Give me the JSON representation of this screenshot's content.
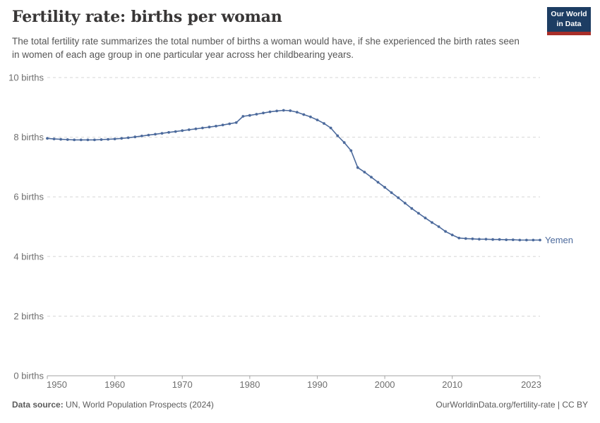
{
  "header": {
    "title": "Fertility rate: births per woman",
    "subtitle": "The total fertility rate summarizes the total number of births a woman would have, if she experienced the birth rates seen in women of each age group in one particular year across her childbearing years.",
    "logo": {
      "line1": "Our World",
      "line2": "in Data",
      "bg_color": "#1d3d63",
      "accent_color": "#a82e29"
    }
  },
  "chart_data": {
    "type": "line",
    "title": "Fertility rate: births per woman",
    "xlabel": "",
    "ylabel": "births per woman",
    "xlim": [
      1950,
      2023
    ],
    "ylim": [
      0,
      10
    ],
    "grid": "horizontal-dashed",
    "legend_position": "end-of-line-label",
    "x_ticks": [
      1950,
      1960,
      1970,
      1980,
      1990,
      2000,
      2010,
      2023
    ],
    "y_ticks": [
      {
        "value": 0,
        "label": "0 births"
      },
      {
        "value": 2,
        "label": "2 births"
      },
      {
        "value": 4,
        "label": "4 births"
      },
      {
        "value": 6,
        "label": "6 births"
      },
      {
        "value": 8,
        "label": "8 births"
      },
      {
        "value": 10,
        "label": "10 births"
      }
    ],
    "series": [
      {
        "name": "Yemen",
        "color": "#4c6a9c",
        "x": [
          1950,
          1951,
          1952,
          1953,
          1954,
          1955,
          1956,
          1957,
          1958,
          1959,
          1960,
          1961,
          1962,
          1963,
          1964,
          1965,
          1966,
          1967,
          1968,
          1969,
          1970,
          1971,
          1972,
          1973,
          1974,
          1975,
          1976,
          1977,
          1978,
          1979,
          1980,
          1981,
          1982,
          1983,
          1984,
          1985,
          1986,
          1987,
          1988,
          1989,
          1990,
          1991,
          1992,
          1993,
          1994,
          1995,
          1996,
          1997,
          1998,
          1999,
          2000,
          2001,
          2002,
          2003,
          2004,
          2005,
          2006,
          2007,
          2008,
          2009,
          2010,
          2011,
          2012,
          2013,
          2014,
          2015,
          2016,
          2017,
          2018,
          2019,
          2020,
          2021,
          2022,
          2023
        ],
        "values": [
          7.96,
          7.94,
          7.93,
          7.92,
          7.91,
          7.91,
          7.91,
          7.91,
          7.92,
          7.93,
          7.94,
          7.96,
          7.98,
          8.01,
          8.04,
          8.07,
          8.1,
          8.13,
          8.16,
          8.19,
          8.22,
          8.25,
          8.28,
          8.31,
          8.34,
          8.37,
          8.41,
          8.45,
          8.49,
          8.7,
          8.73,
          8.77,
          8.81,
          8.85,
          8.88,
          8.9,
          8.89,
          8.84,
          8.76,
          8.68,
          8.58,
          8.46,
          8.31,
          8.05,
          7.82,
          7.55,
          6.98,
          6.83,
          6.66,
          6.49,
          6.32,
          6.14,
          5.97,
          5.79,
          5.61,
          5.45,
          5.29,
          5.14,
          5.0,
          4.84,
          4.72,
          4.62,
          4.6,
          4.59,
          4.58,
          4.58,
          4.57,
          4.57,
          4.56,
          4.56,
          4.55,
          4.55,
          4.55,
          4.55
        ]
      }
    ],
    "colors": {
      "line": "#4c6a9c",
      "gridline": "#d6d6d6",
      "axis": "#a3a3a3",
      "tick_label": "#6e6e6e"
    }
  },
  "footer": {
    "source_label": "Data source:",
    "source_text": " UN, World Population Prospects (2024)",
    "link_text": "OurWorldinData.org/fertility-rate | CC BY"
  }
}
